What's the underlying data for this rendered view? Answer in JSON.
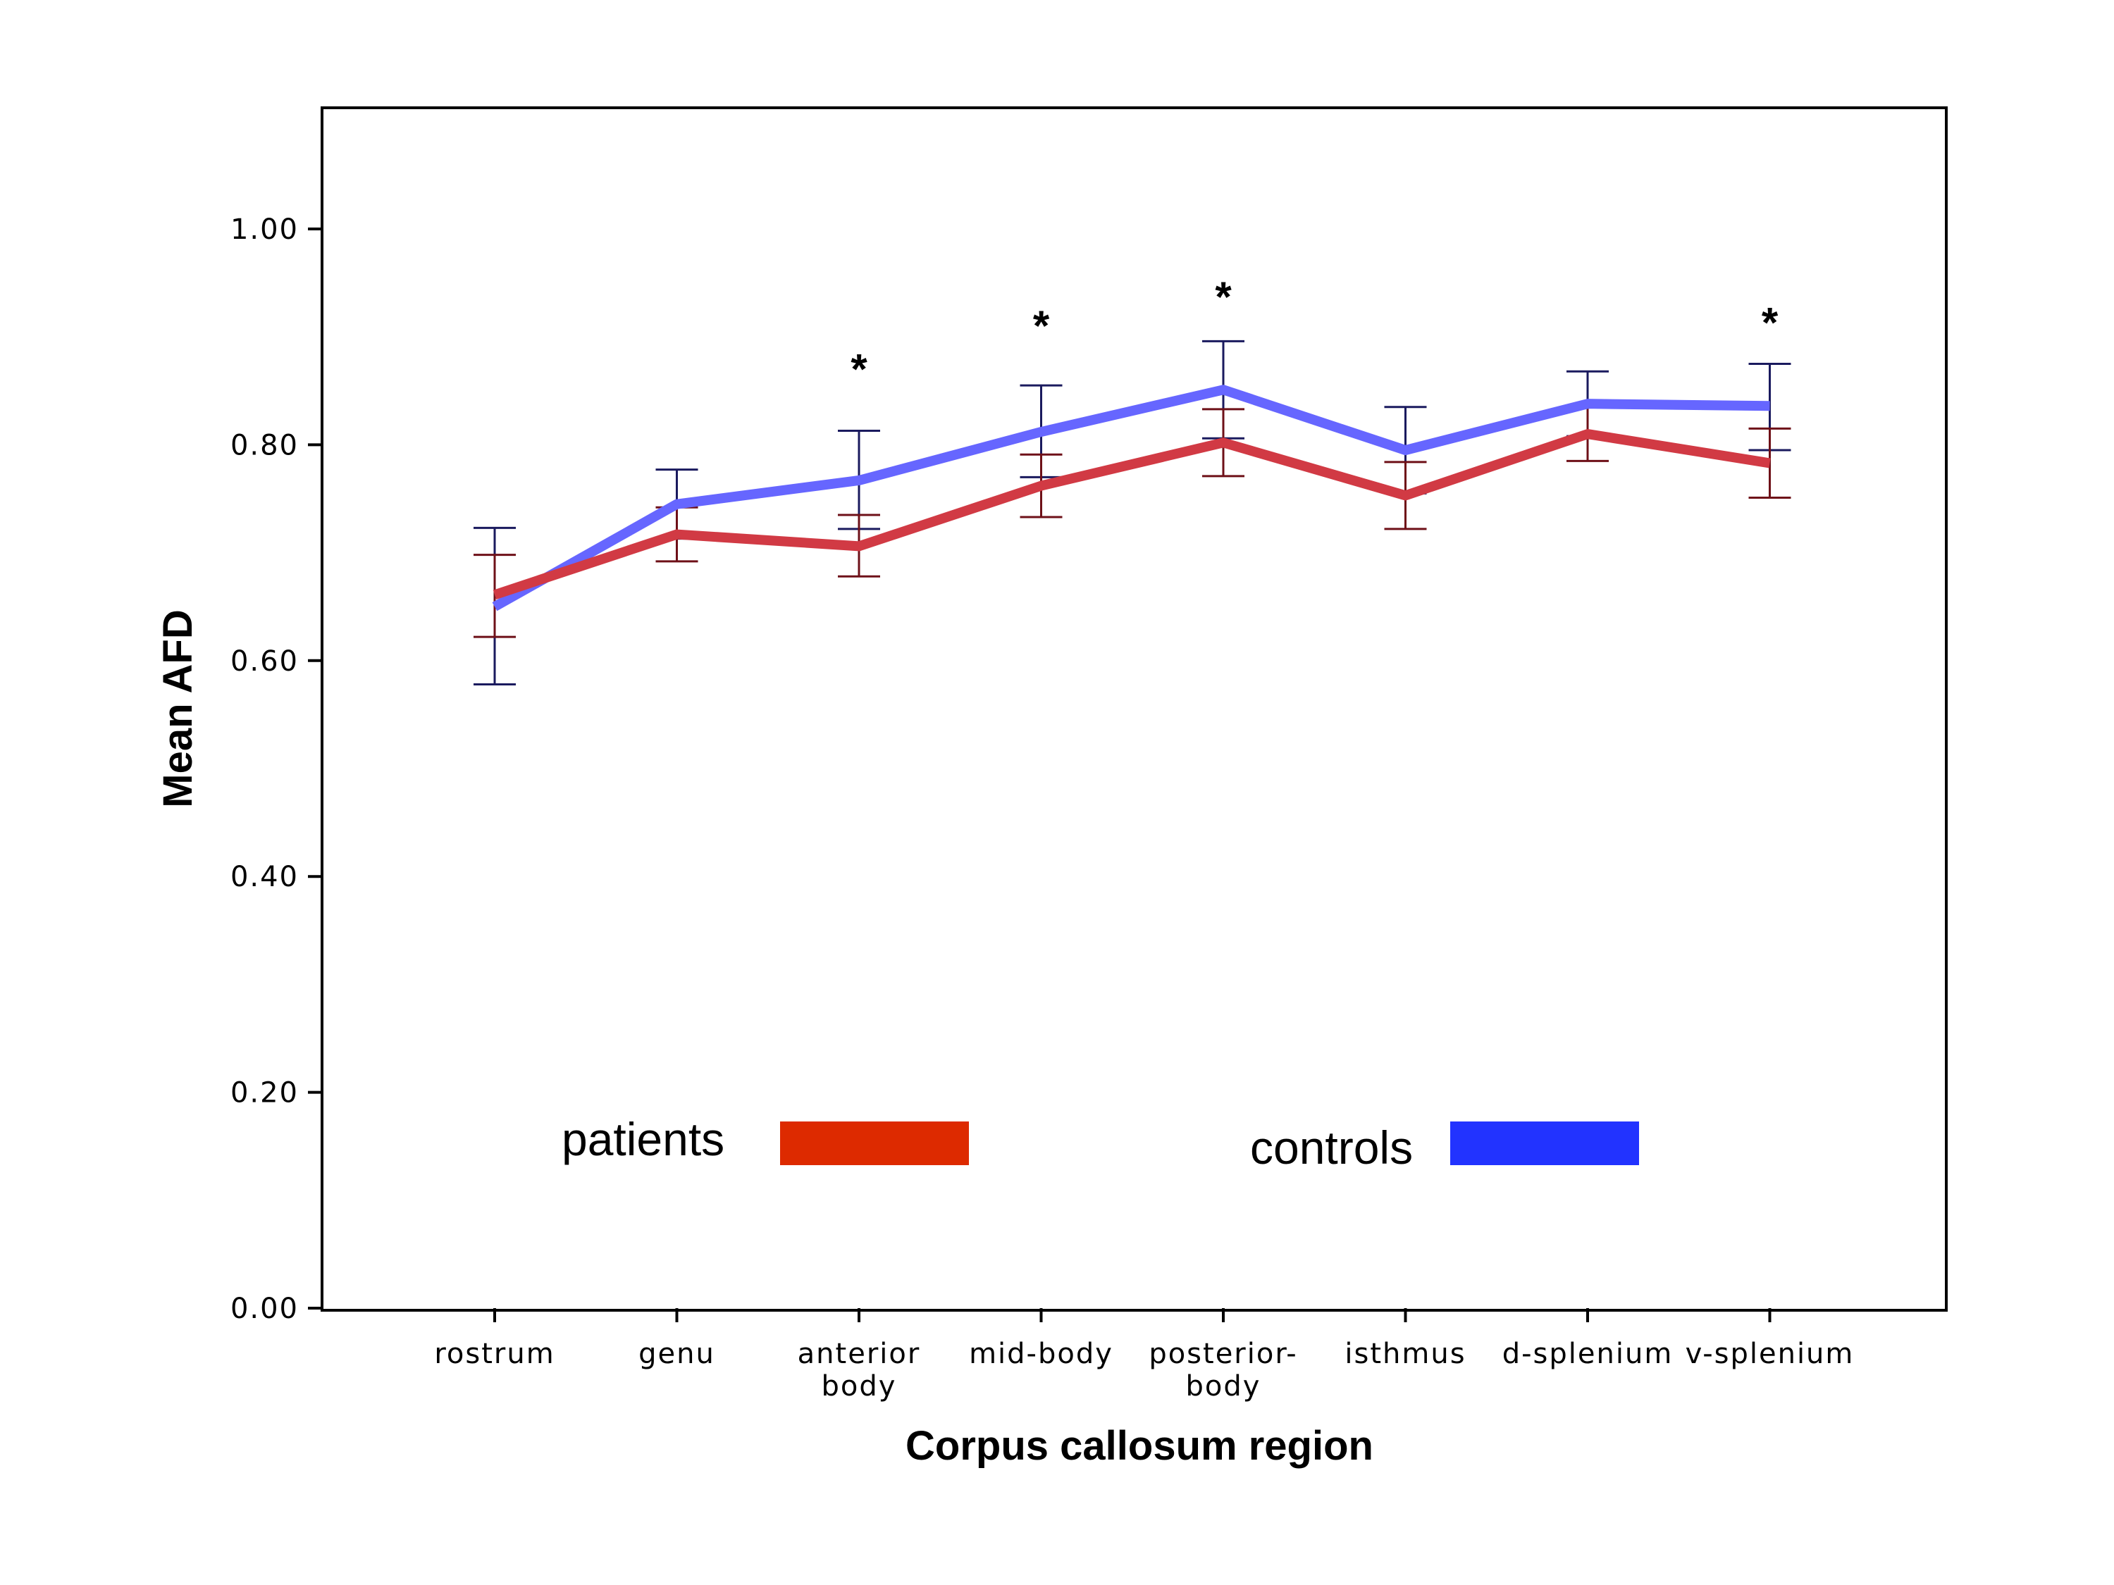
{
  "chart_data": {
    "type": "line",
    "xlabel": "Corpus callosum region",
    "ylabel": "Mean AFD",
    "ylim": [
      0,
      1.1
    ],
    "yticks": [
      0,
      0.2,
      0.4,
      0.6,
      0.8,
      1.0
    ],
    "ytick_labels": [
      "0.00",
      "0.20",
      "0.40",
      "0.60",
      "0.80",
      "1.00"
    ],
    "categories": [
      [
        "rostrum"
      ],
      [
        "genu"
      ],
      [
        "anterior",
        "body"
      ],
      [
        "mid-body"
      ],
      [
        "posterior-",
        "body"
      ],
      [
        "isthmus"
      ],
      [
        "d-splenium"
      ],
      [
        "v-splenium"
      ]
    ],
    "series": [
      {
        "name": "controls",
        "color": "#6666ff",
        "errorbar_color": "#1a1a5e",
        "legend_color": "#2233ff",
        "values": [
          0.65,
          0.745,
          0.767,
          0.812,
          0.851,
          0.795,
          0.838,
          0.836
        ],
        "lower": [
          0.578,
          0.713,
          0.722,
          0.77,
          0.806,
          0.755,
          0.808,
          0.795
        ],
        "upper": [
          0.723,
          0.777,
          0.813,
          0.855,
          0.896,
          0.835,
          0.868,
          0.875
        ]
      },
      {
        "name": "patients",
        "color": "#d13a44",
        "errorbar_color": "#6e1018",
        "legend_color": "#dd2a00",
        "values": [
          0.661,
          0.717,
          0.706,
          0.762,
          0.802,
          0.753,
          0.81,
          0.783
        ],
        "lower": [
          0.622,
          0.692,
          0.678,
          0.733,
          0.771,
          0.722,
          0.785,
          0.751
        ],
        "upper": [
          0.698,
          0.742,
          0.735,
          0.791,
          0.833,
          0.784,
          0.835,
          0.815
        ]
      }
    ],
    "annotations": [
      {
        "category_index": 2,
        "text": "*",
        "y": 0.875
      },
      {
        "category_index": 3,
        "text": "*",
        "y": 0.915
      },
      {
        "category_index": 4,
        "text": "*",
        "y": 0.942
      },
      {
        "category_index": 7,
        "text": "*",
        "y": 0.918
      }
    ],
    "legend": {
      "placement": "bottom-center",
      "items": [
        {
          "label": "patients",
          "color": "#dd2a00"
        },
        {
          "label": "controls",
          "color": "#2233ff"
        }
      ]
    }
  }
}
